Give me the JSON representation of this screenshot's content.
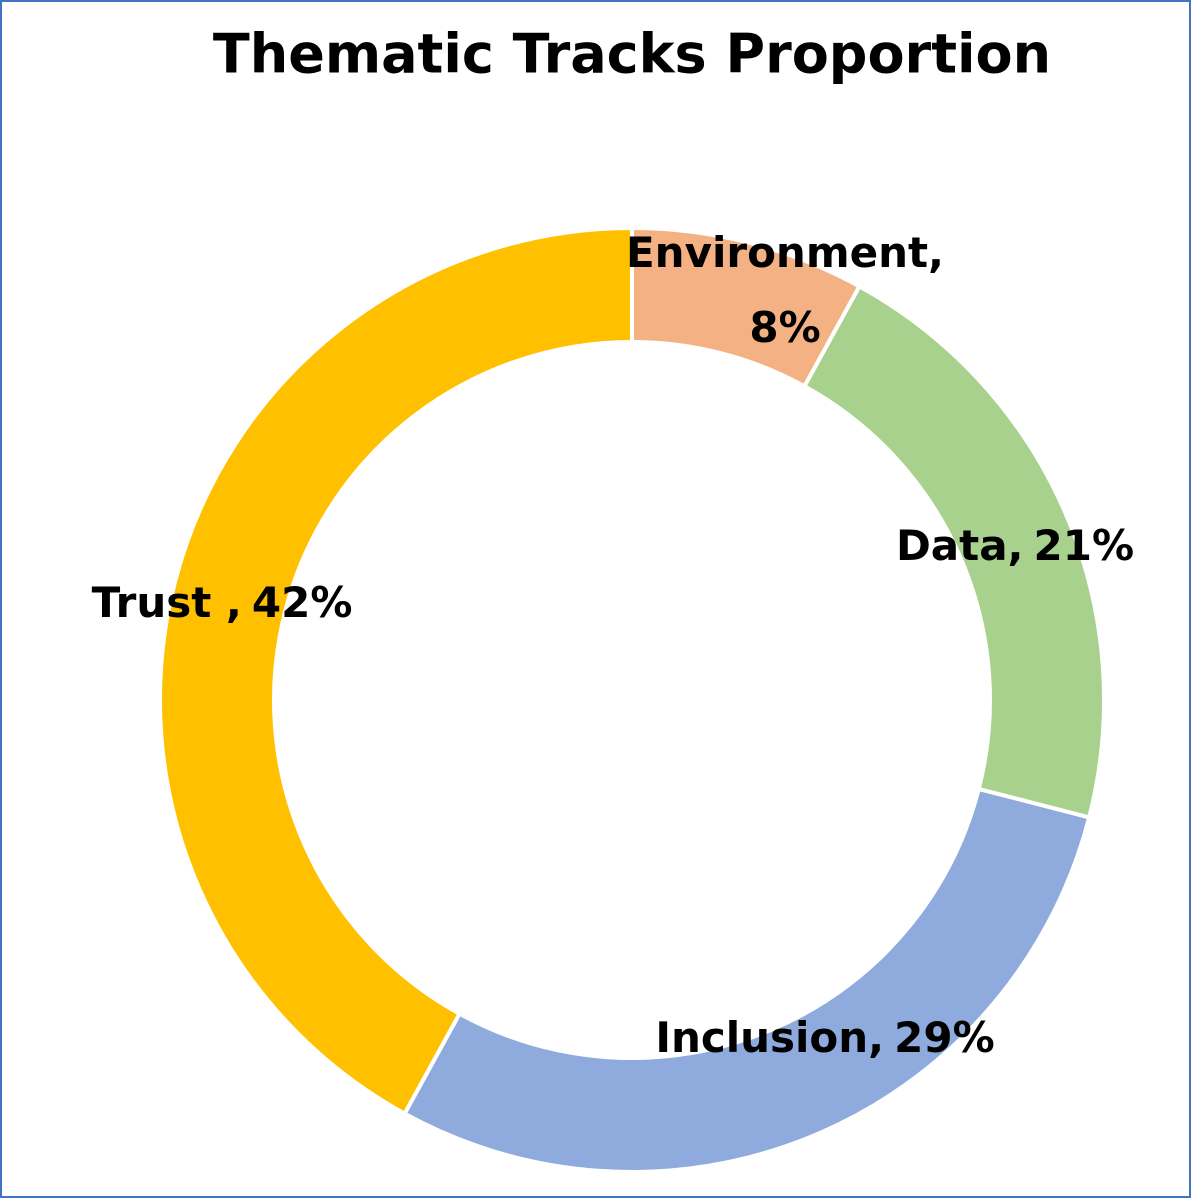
{
  "chart_data": {
    "type": "donut",
    "title": "Thematic Tracks Proportion",
    "categories": [
      "Environment,",
      "Data,",
      "Inclusion,",
      "Trust ,"
    ],
    "values": [
      8,
      21,
      29,
      42
    ],
    "value_labels": [
      "8%",
      "21%",
      "29%",
      "42%"
    ],
    "colors": [
      "#f4b183",
      "#a9d18e",
      "#8faadc",
      "#ffc000"
    ]
  }
}
